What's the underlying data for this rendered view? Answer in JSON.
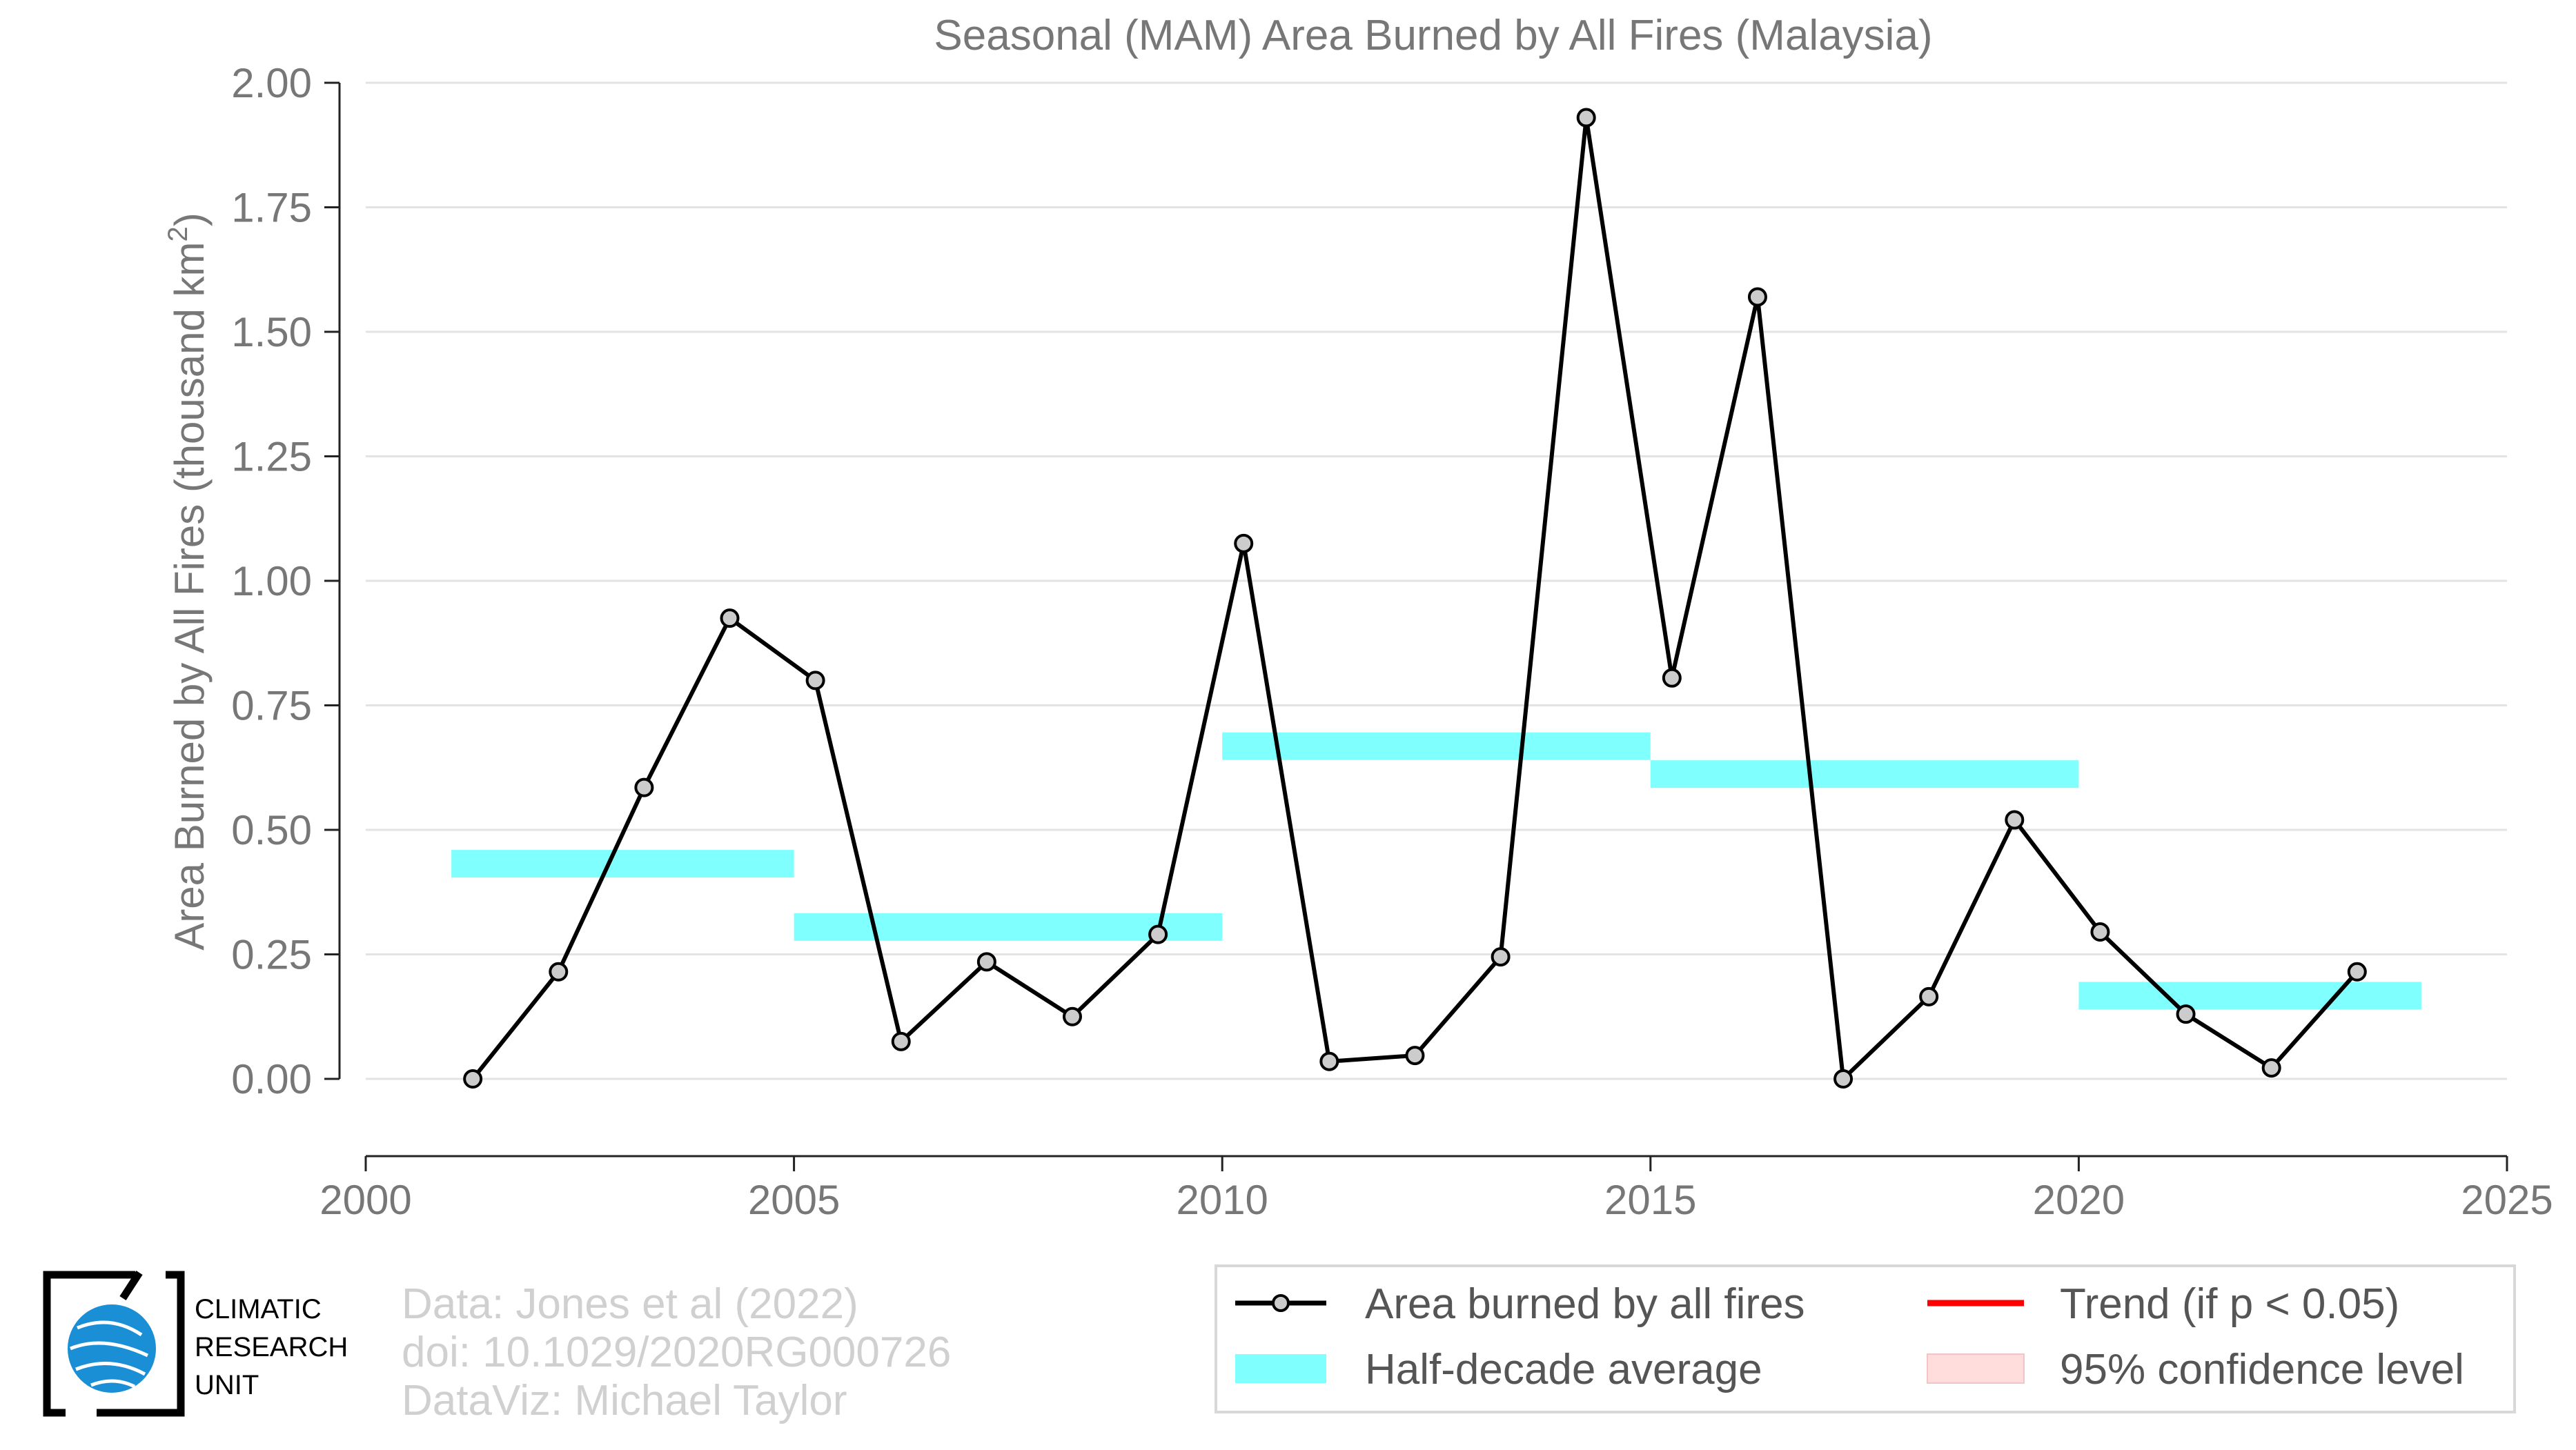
{
  "chart_data": {
    "type": "line",
    "title": "Seasonal (MAM) Area Burned by All Fires (Malaysia)",
    "xlabel": "",
    "ylabel": "Area Burned by All Fires (thousand km²)",
    "ylabel_main": "Area Burned by All Fires (thousand km",
    "ylabel_sup": "2",
    "ylabel_close": ")",
    "xlim": [
      2000,
      2025
    ],
    "ylim": [
      -0.15,
      2.0
    ],
    "x_ticks": [
      2000,
      2005,
      2010,
      2015,
      2020,
      2025
    ],
    "x_tick_labels": [
      "2000",
      "2005",
      "2010",
      "2015",
      "2020",
      "2025"
    ],
    "y_ticks": [
      0,
      0.25,
      0.5,
      0.75,
      1.0,
      1.25,
      1.5,
      1.75,
      2.0
    ],
    "y_tick_labels": [
      "0.00",
      "0.25",
      "0.50",
      "0.75",
      "1.00",
      "1.25",
      "1.50",
      "1.75",
      "2.00"
    ],
    "grid": "horizontal",
    "legend_position": "bottom-right",
    "series": [
      {
        "name": "Area burned by all fires",
        "color": "#000000",
        "marker_fill": "#cccccc",
        "x": [
          2001.25,
          2002.25,
          2003.25,
          2004.25,
          2005.25,
          2006.25,
          2007.25,
          2008.25,
          2009.25,
          2010.25,
          2011.25,
          2012.25,
          2013.25,
          2014.25,
          2015.25,
          2016.25,
          2017.25,
          2018.25,
          2019.25,
          2020.25,
          2021.25,
          2022.25,
          2023.25
        ],
        "values": [
          0.0,
          0.215,
          0.585,
          0.925,
          0.8,
          0.075,
          0.235,
          0.125,
          0.29,
          1.075,
          0.035,
          0.047,
          0.245,
          1.93,
          0.805,
          1.57,
          0.0,
          0.165,
          0.52,
          0.295,
          0.13,
          0.022,
          0.215
        ]
      }
    ],
    "half_decade_averages": {
      "name": "Half-decade average",
      "color": "#80ffff",
      "segments": [
        {
          "start": 2001,
          "end": 2005,
          "value": 0.432
        },
        {
          "start": 2005,
          "end": 2010,
          "value": 0.305
        },
        {
          "start": 2010,
          "end": 2015,
          "value": 0.668
        },
        {
          "start": 2015,
          "end": 2020,
          "value": 0.612
        },
        {
          "start": 2020,
          "end": 2024,
          "value": 0.167
        }
      ]
    },
    "legend": [
      {
        "label": "Area burned by all fires",
        "kind": "line-marker",
        "color": "#000000"
      },
      {
        "label": "Trend (if p < 0.05)",
        "kind": "line",
        "color": "#ff0000"
      },
      {
        "label": "Half-decade average",
        "kind": "band",
        "color": "#80ffff"
      },
      {
        "label": "95% confidence level",
        "kind": "band",
        "color": "#ffdddd"
      }
    ]
  },
  "credits": {
    "line1": "Data: Jones et al (2022)",
    "line2": "doi: 10.1029/2020RG000726",
    "line3": "DataViz: Michael Taylor"
  },
  "logo": {
    "line1": "CLIMATIC",
    "line2": "RESEARCH",
    "line3": "UNIT",
    "color": "#1a8fd6"
  }
}
